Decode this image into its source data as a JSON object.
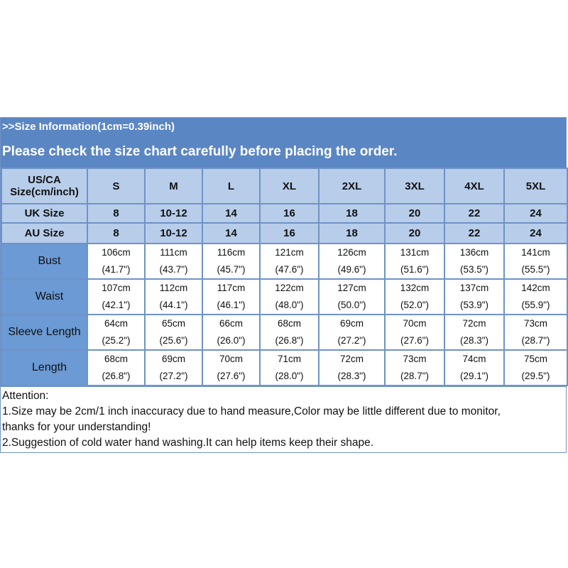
{
  "header": {
    "line1": ">>Size Information(1cm=0.39inch)",
    "line2": "Please check the size chart carefully before placing the order."
  },
  "table": {
    "us_label": [
      "US/CA",
      "Size(cm/inch)"
    ],
    "sizes": [
      "S",
      "M",
      "L",
      "XL",
      "2XL",
      "3XL",
      "4XL",
      "5XL"
    ],
    "uk_label": "UK Size",
    "uk": [
      "8",
      "10-12",
      "14",
      "16",
      "18",
      "20",
      "22",
      "24"
    ],
    "au_label": "AU Size",
    "au": [
      "8",
      "10-12",
      "14",
      "16",
      "18",
      "20",
      "22",
      "24"
    ],
    "measures": [
      {
        "label": "Bust",
        "cm": [
          "106cm",
          "111cm",
          "116cm",
          "121cm",
          "126cm",
          "131cm",
          "136cm",
          "141cm"
        ],
        "inch": [
          "(41.7\")",
          "(43.7\")",
          "(45.7\")",
          "(47.6\")",
          "(49.6\")",
          "(51.6\")",
          "(53.5\")",
          "(55.5\")"
        ]
      },
      {
        "label": "Waist",
        "cm": [
          "107cm",
          "112cm",
          "117cm",
          "122cm",
          "127cm",
          "132cm",
          "137cm",
          "142cm"
        ],
        "inch": [
          "(42.1\")",
          "(44.1\")",
          "(46.1\")",
          "(48.0\")",
          "(50.0\")",
          "(52.0\")",
          "(53.9\")",
          "(55.9\")"
        ]
      },
      {
        "label": "Sleeve Length",
        "cm": [
          "64cm",
          "65cm",
          "66cm",
          "68cm",
          "69cm",
          "70cm",
          "72cm",
          "73cm"
        ],
        "inch": [
          "(25.2\")",
          "(25.6\")",
          "(26.0\")",
          "(26.8\")",
          "(27.2\")",
          "(27.6\")",
          "(28.3\")",
          "(28.7\")"
        ]
      },
      {
        "label": "Length",
        "cm": [
          "68cm",
          "69cm",
          "70cm",
          "71cm",
          "72cm",
          "73cm",
          "74cm",
          "75cm"
        ],
        "inch": [
          "(26.8\")",
          "(27.2\")",
          "(27.6\")",
          "(28.0\")",
          "(28.3\")",
          "(28.7\")",
          "(29.1\")",
          "(29.5\")"
        ]
      }
    ]
  },
  "attention": {
    "title": "Attention:",
    "lines": [
      "1.Size may be 2cm/1 inch inaccuracy due to hand measure,Color may be little different due to monitor,",
      "thanks for your understanding!",
      "2.Suggestion of cold water hand washing.It can help items keep their shape."
    ]
  },
  "colors": {
    "banner": "#5b86c4",
    "header_cell": "#b7cdea",
    "row_header": "#6b9ad4",
    "border": "#6f93c6"
  }
}
